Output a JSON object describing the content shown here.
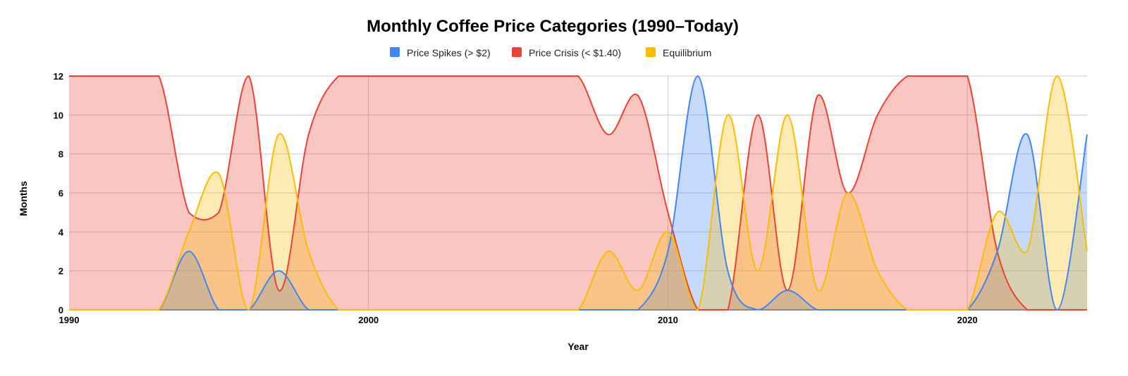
{
  "chart_data": {
    "type": "area",
    "title": "Monthly Coffee Price Categories (1990–Today)",
    "xlabel": "Year",
    "ylabel": "Months",
    "xlim": [
      1990,
      2024
    ],
    "ylim": [
      0,
      12
    ],
    "x_ticks": [
      1990,
      2000,
      2010,
      2020
    ],
    "y_ticks": [
      0,
      2,
      4,
      6,
      8,
      10,
      12
    ],
    "grid": true,
    "legend_position": "top",
    "x": [
      1990,
      1991,
      1992,
      1993,
      1994,
      1995,
      1996,
      1997,
      1998,
      1999,
      2000,
      2001,
      2002,
      2003,
      2004,
      2005,
      2006,
      2007,
      2008,
      2009,
      2010,
      2011,
      2012,
      2013,
      2014,
      2015,
      2016,
      2017,
      2018,
      2019,
      2020,
      2021,
      2022,
      2023,
      2024
    ],
    "series": [
      {
        "name": "Price Spikes (> $2)",
        "color": "#4285F4",
        "values": [
          0,
          0,
          0,
          0,
          3,
          0,
          0,
          2,
          0,
          0,
          0,
          0,
          0,
          0,
          0,
          0,
          0,
          0,
          0,
          0,
          3,
          12,
          2,
          0,
          1,
          0,
          0,
          0,
          0,
          0,
          0,
          3,
          9,
          0,
          9
        ]
      },
      {
        "name": "Price Crisis (< $1.40)",
        "color": "#EA4335",
        "values": [
          12,
          12,
          12,
          12,
          5,
          5,
          12,
          1,
          9,
          12,
          12,
          12,
          12,
          12,
          12,
          12,
          12,
          12,
          9,
          11,
          5,
          0,
          0,
          10,
          1,
          11,
          6,
          10,
          12,
          12,
          12,
          3,
          0,
          0,
          0
        ]
      },
      {
        "name": "Equilibrium",
        "color": "#FBBC04",
        "values": [
          0,
          0,
          0,
          0,
          4,
          7,
          0,
          9,
          3,
          0,
          0,
          0,
          0,
          0,
          0,
          0,
          0,
          0,
          3,
          1,
          4,
          0,
          10,
          2,
          10,
          1,
          6,
          2,
          0,
          0,
          0,
          5,
          3,
          12,
          3
        ]
      }
    ]
  }
}
